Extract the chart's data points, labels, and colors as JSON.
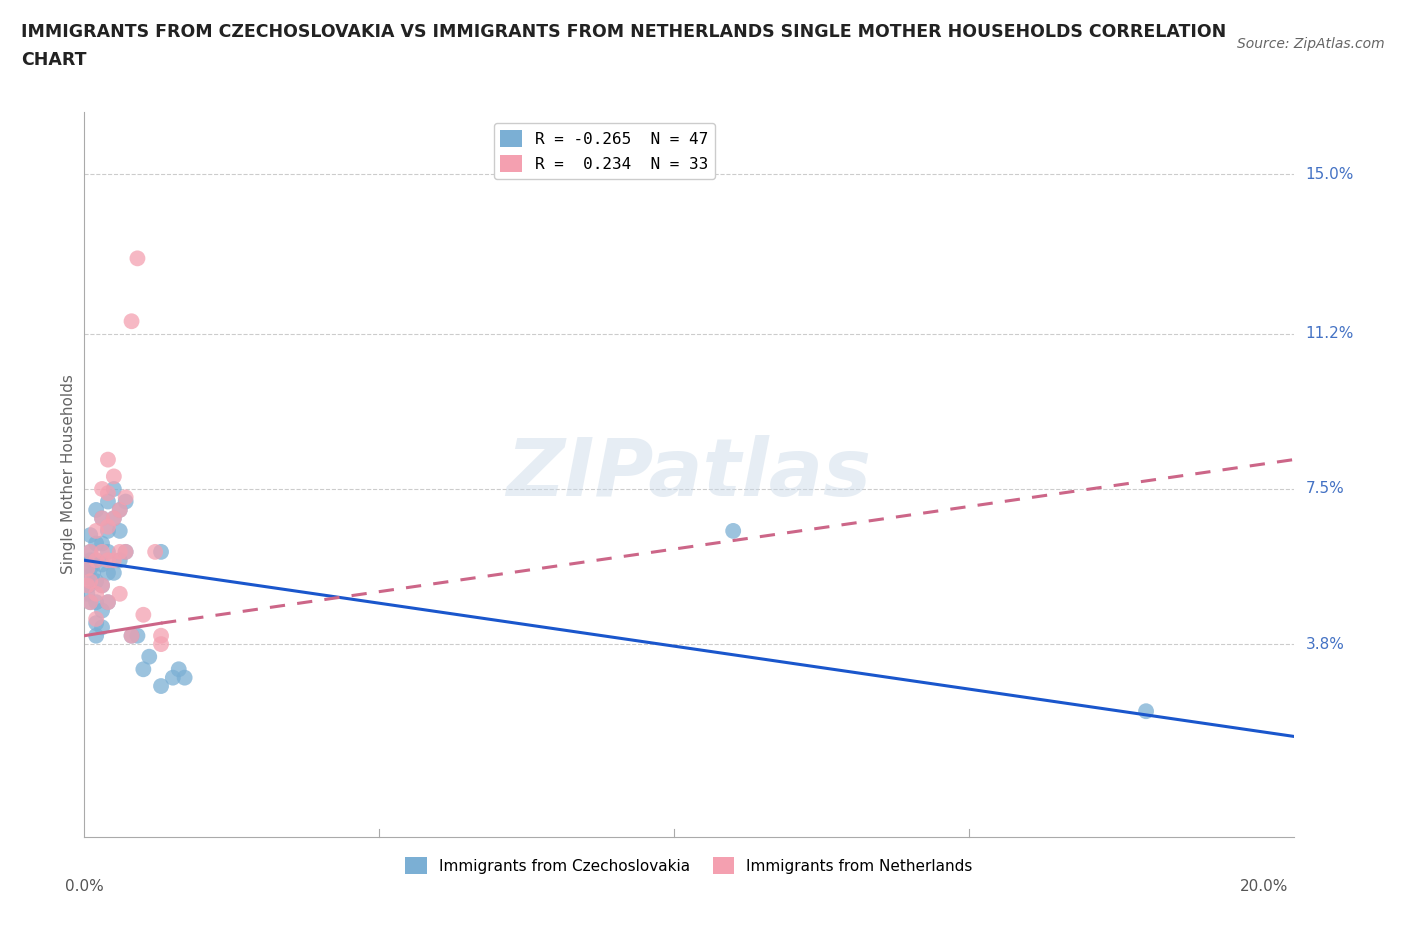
{
  "title_line1": "IMMIGRANTS FROM CZECHOSLOVAKIA VS IMMIGRANTS FROM NETHERLANDS SINGLE MOTHER HOUSEHOLDS CORRELATION",
  "title_line2": "CHART",
  "source": "Source: ZipAtlas.com",
  "ylabel": "Single Mother Households",
  "ytick_values": [
    0.038,
    0.075,
    0.112,
    0.15
  ],
  "ytick_labels": [
    "3.8%",
    "7.5%",
    "11.2%",
    "15.0%"
  ],
  "xlim": [
    0.0,
    0.205
  ],
  "ylim": [
    -0.008,
    0.165
  ],
  "legend_text_blue": "R = -0.265  N = 47",
  "legend_text_pink": "R =  0.234  N = 33",
  "color_blue": "#7BAFD4",
  "color_pink": "#F4A0B0",
  "line_color_blue": "#1A56CC",
  "line_color_pink": "#CC6688",
  "watermark": "ZIPatlas",
  "czecho_points": [
    [
      0.0005,
      0.054
    ],
    [
      0.0005,
      0.05
    ],
    [
      0.0005,
      0.057
    ],
    [
      0.0008,
      0.052
    ],
    [
      0.001,
      0.06
    ],
    [
      0.001,
      0.056
    ],
    [
      0.001,
      0.048
    ],
    [
      0.001,
      0.064
    ],
    [
      0.001,
      0.058
    ],
    [
      0.0015,
      0.055
    ],
    [
      0.002,
      0.07
    ],
    [
      0.002,
      0.062
    ],
    [
      0.002,
      0.058
    ],
    [
      0.002,
      0.053
    ],
    [
      0.002,
      0.048
    ],
    [
      0.002,
      0.043
    ],
    [
      0.002,
      0.04
    ],
    [
      0.003,
      0.068
    ],
    [
      0.003,
      0.062
    ],
    [
      0.003,
      0.057
    ],
    [
      0.003,
      0.052
    ],
    [
      0.003,
      0.046
    ],
    [
      0.003,
      0.042
    ],
    [
      0.004,
      0.072
    ],
    [
      0.004,
      0.065
    ],
    [
      0.004,
      0.06
    ],
    [
      0.004,
      0.055
    ],
    [
      0.004,
      0.048
    ],
    [
      0.005,
      0.075
    ],
    [
      0.005,
      0.068
    ],
    [
      0.005,
      0.055
    ],
    [
      0.006,
      0.07
    ],
    [
      0.006,
      0.065
    ],
    [
      0.006,
      0.058
    ],
    [
      0.007,
      0.072
    ],
    [
      0.007,
      0.06
    ],
    [
      0.008,
      0.04
    ],
    [
      0.009,
      0.04
    ],
    [
      0.01,
      0.032
    ],
    [
      0.011,
      0.035
    ],
    [
      0.013,
      0.06
    ],
    [
      0.013,
      0.028
    ],
    [
      0.015,
      0.03
    ],
    [
      0.016,
      0.032
    ],
    [
      0.017,
      0.03
    ],
    [
      0.11,
      0.065
    ],
    [
      0.18,
      0.022
    ]
  ],
  "netherlands_points": [
    [
      0.0005,
      0.056
    ],
    [
      0.0005,
      0.052
    ],
    [
      0.001,
      0.06
    ],
    [
      0.001,
      0.053
    ],
    [
      0.001,
      0.048
    ],
    [
      0.002,
      0.065
    ],
    [
      0.002,
      0.058
    ],
    [
      0.002,
      0.05
    ],
    [
      0.002,
      0.044
    ],
    [
      0.003,
      0.075
    ],
    [
      0.003,
      0.068
    ],
    [
      0.003,
      0.06
    ],
    [
      0.003,
      0.052
    ],
    [
      0.004,
      0.082
    ],
    [
      0.004,
      0.074
    ],
    [
      0.004,
      0.066
    ],
    [
      0.004,
      0.058
    ],
    [
      0.004,
      0.048
    ],
    [
      0.005,
      0.078
    ],
    [
      0.005,
      0.068
    ],
    [
      0.005,
      0.058
    ],
    [
      0.006,
      0.07
    ],
    [
      0.006,
      0.06
    ],
    [
      0.006,
      0.05
    ],
    [
      0.007,
      0.073
    ],
    [
      0.007,
      0.06
    ],
    [
      0.008,
      0.115
    ],
    [
      0.008,
      0.04
    ],
    [
      0.009,
      0.13
    ],
    [
      0.01,
      0.045
    ],
    [
      0.012,
      0.06
    ],
    [
      0.013,
      0.04
    ],
    [
      0.013,
      0.038
    ]
  ],
  "czecho_line": [
    0.0,
    0.058,
    0.205,
    0.016
  ],
  "netherlands_line_solid": [
    0.0,
    0.04,
    0.013,
    0.043
  ],
  "netherlands_line_dashed": [
    0.013,
    0.043,
    0.205,
    0.082
  ],
  "xtick_positions": [
    0.05,
    0.1,
    0.15
  ]
}
